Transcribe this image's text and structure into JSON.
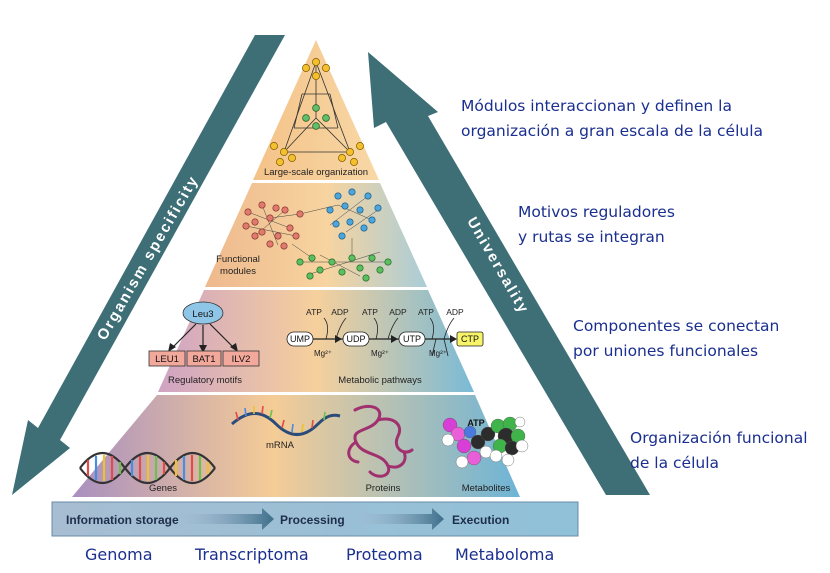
{
  "pyramid": {
    "level1_label": "Large-scale organization",
    "level2_label_line1": "Functional",
    "level2_label_line2": "modules",
    "level3_regulatory_label": "Regulatory motifs",
    "level3_metabolic_label": "Metabolic pathways",
    "leu3": "Leu3",
    "genes": [
      "LEU1",
      "BAT1",
      "ILV2"
    ],
    "pathway_nodes": [
      "UMP",
      "UDP",
      "UTP",
      "CTP"
    ],
    "atp": "ATP",
    "adp": "ADP",
    "mg": "Mg²⁺",
    "level4_genes": "Genes",
    "level4_mrna": "mRNA",
    "level4_proteins": "Proteins",
    "level4_metabolites": "Metabolites",
    "level4_atp": "ATP"
  },
  "flow_bar": {
    "storage": "Information storage",
    "processing": "Processing",
    "execution": "Execution"
  },
  "arrows": {
    "left": "Organism specificity",
    "right": "Universality"
  },
  "annotations": {
    "a1_line1": "Módulos interaccionan y definen la",
    "a1_line2": "organización a gran escala de la célula",
    "a2_line1": "Motivos reguladores",
    "a2_line2": "y rutas se integran",
    "a3_line1": "Componentes se conectan",
    "a3_line2": "por uniones funcionales",
    "a4_line1": "Organización funcional",
    "a4_line2": "de la célula"
  },
  "omics": [
    "Genoma",
    "Transcriptoma",
    "Proteoma",
    "Metaboloma"
  ],
  "colors": {
    "arrow": "#3e6e76",
    "text_blue": "#1a2f8f",
    "warm": "#f6c98f",
    "cool": "#6fb6d5",
    "purple": "#b497c4"
  }
}
